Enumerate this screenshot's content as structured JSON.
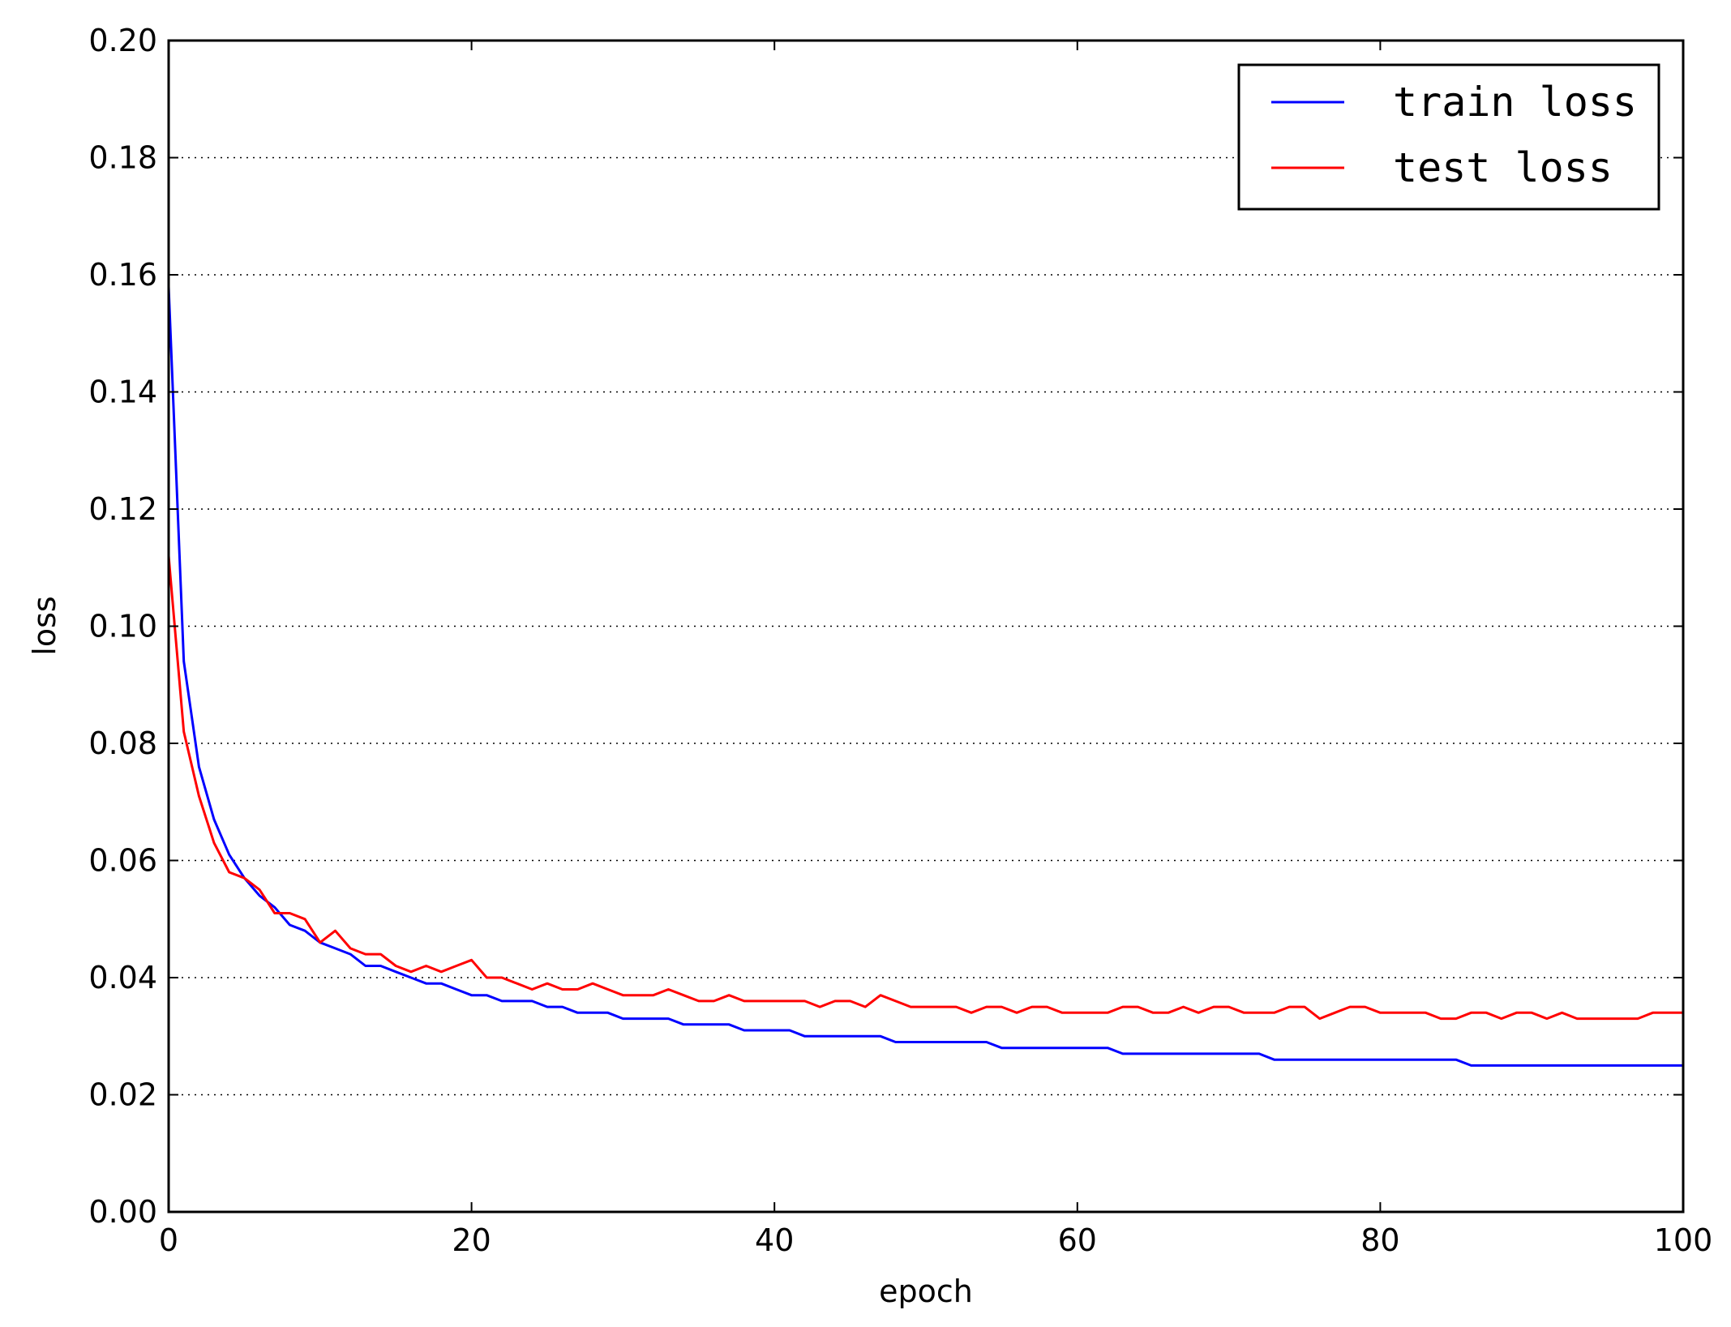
{
  "chart_data": {
    "type": "line",
    "title": "",
    "xlabel": "epoch",
    "ylabel": "loss",
    "xlim": [
      0,
      100
    ],
    "ylim": [
      0.0,
      0.2
    ],
    "xticks": [
      0,
      20,
      40,
      60,
      80,
      100
    ],
    "xtick_labels": [
      "0",
      "20",
      "40",
      "60",
      "80",
      "100"
    ],
    "yticks": [
      0.0,
      0.02,
      0.04,
      0.06,
      0.08,
      0.1,
      0.12,
      0.14,
      0.16,
      0.18,
      0.2
    ],
    "ytick_labels": [
      "0.00",
      "0.02",
      "0.04",
      "0.06",
      "0.08",
      "0.10",
      "0.12",
      "0.14",
      "0.16",
      "0.18",
      "0.20"
    ],
    "grid": "horizontal dotted",
    "legend_position": "top-right",
    "series": [
      {
        "name": "train loss",
        "color": "#0000ff",
        "x": [
          0,
          1,
          2,
          3,
          4,
          5,
          6,
          7,
          8,
          9,
          10,
          11,
          12,
          13,
          14,
          15,
          16,
          17,
          18,
          19,
          20,
          21,
          22,
          23,
          24,
          25,
          26,
          27,
          28,
          29,
          30,
          31,
          32,
          33,
          34,
          35,
          36,
          37,
          38,
          39,
          40,
          41,
          42,
          43,
          44,
          45,
          46,
          47,
          48,
          49,
          50,
          51,
          52,
          53,
          54,
          55,
          56,
          57,
          58,
          59,
          60,
          61,
          62,
          63,
          64,
          65,
          66,
          67,
          68,
          69,
          70,
          71,
          72,
          73,
          74,
          75,
          76,
          77,
          78,
          79,
          80,
          81,
          82,
          83,
          84,
          85,
          86,
          87,
          88,
          89,
          90,
          91,
          92,
          93,
          94,
          95,
          96,
          97,
          98,
          99,
          100
        ],
        "values": [
          0.158,
          0.094,
          0.076,
          0.067,
          0.061,
          0.057,
          0.054,
          0.052,
          0.049,
          0.048,
          0.046,
          0.045,
          0.044,
          0.042,
          0.042,
          0.041,
          0.04,
          0.039,
          0.039,
          0.038,
          0.037,
          0.037,
          0.036,
          0.036,
          0.036,
          0.035,
          0.035,
          0.034,
          0.034,
          0.034,
          0.033,
          0.033,
          0.033,
          0.033,
          0.032,
          0.032,
          0.032,
          0.032,
          0.031,
          0.031,
          0.031,
          0.031,
          0.03,
          0.03,
          0.03,
          0.03,
          0.03,
          0.03,
          0.029,
          0.029,
          0.029,
          0.029,
          0.029,
          0.029,
          0.029,
          0.028,
          0.028,
          0.028,
          0.028,
          0.028,
          0.028,
          0.028,
          0.028,
          0.027,
          0.027,
          0.027,
          0.027,
          0.027,
          0.027,
          0.027,
          0.027,
          0.027,
          0.027,
          0.026,
          0.026,
          0.026,
          0.026,
          0.026,
          0.026,
          0.026,
          0.026,
          0.026,
          0.026,
          0.026,
          0.026,
          0.026,
          0.025,
          0.025,
          0.025,
          0.025,
          0.025,
          0.025,
          0.025,
          0.025,
          0.025,
          0.025,
          0.025,
          0.025,
          0.025,
          0.025,
          0.025
        ]
      },
      {
        "name": "test loss",
        "color": "#ff0000",
        "x": [
          0,
          1,
          2,
          3,
          4,
          5,
          6,
          7,
          8,
          9,
          10,
          11,
          12,
          13,
          14,
          15,
          16,
          17,
          18,
          19,
          20,
          21,
          22,
          23,
          24,
          25,
          26,
          27,
          28,
          29,
          30,
          31,
          32,
          33,
          34,
          35,
          36,
          37,
          38,
          39,
          40,
          41,
          42,
          43,
          44,
          45,
          46,
          47,
          48,
          49,
          50,
          51,
          52,
          53,
          54,
          55,
          56,
          57,
          58,
          59,
          60,
          61,
          62,
          63,
          64,
          65,
          66,
          67,
          68,
          69,
          70,
          71,
          72,
          73,
          74,
          75,
          76,
          77,
          78,
          79,
          80,
          81,
          82,
          83,
          84,
          85,
          86,
          87,
          88,
          89,
          90,
          91,
          92,
          93,
          94,
          95,
          96,
          97,
          98,
          99,
          100
        ],
        "values": [
          0.112,
          0.082,
          0.071,
          0.063,
          0.058,
          0.057,
          0.055,
          0.051,
          0.051,
          0.05,
          0.046,
          0.048,
          0.045,
          0.044,
          0.044,
          0.042,
          0.041,
          0.042,
          0.041,
          0.042,
          0.043,
          0.04,
          0.04,
          0.039,
          0.038,
          0.039,
          0.038,
          0.038,
          0.039,
          0.038,
          0.037,
          0.037,
          0.037,
          0.038,
          0.037,
          0.036,
          0.036,
          0.037,
          0.036,
          0.036,
          0.036,
          0.036,
          0.036,
          0.035,
          0.036,
          0.036,
          0.035,
          0.037,
          0.036,
          0.035,
          0.035,
          0.035,
          0.035,
          0.034,
          0.035,
          0.035,
          0.034,
          0.035,
          0.035,
          0.034,
          0.034,
          0.034,
          0.034,
          0.035,
          0.035,
          0.034,
          0.034,
          0.035,
          0.034,
          0.035,
          0.035,
          0.034,
          0.034,
          0.034,
          0.035,
          0.035,
          0.033,
          0.034,
          0.035,
          0.035,
          0.034,
          0.034,
          0.034,
          0.034,
          0.033,
          0.033,
          0.034,
          0.034,
          0.033,
          0.034,
          0.034,
          0.033,
          0.034,
          0.033,
          0.033,
          0.033,
          0.033,
          0.033,
          0.034,
          0.034,
          0.034
        ]
      }
    ]
  }
}
